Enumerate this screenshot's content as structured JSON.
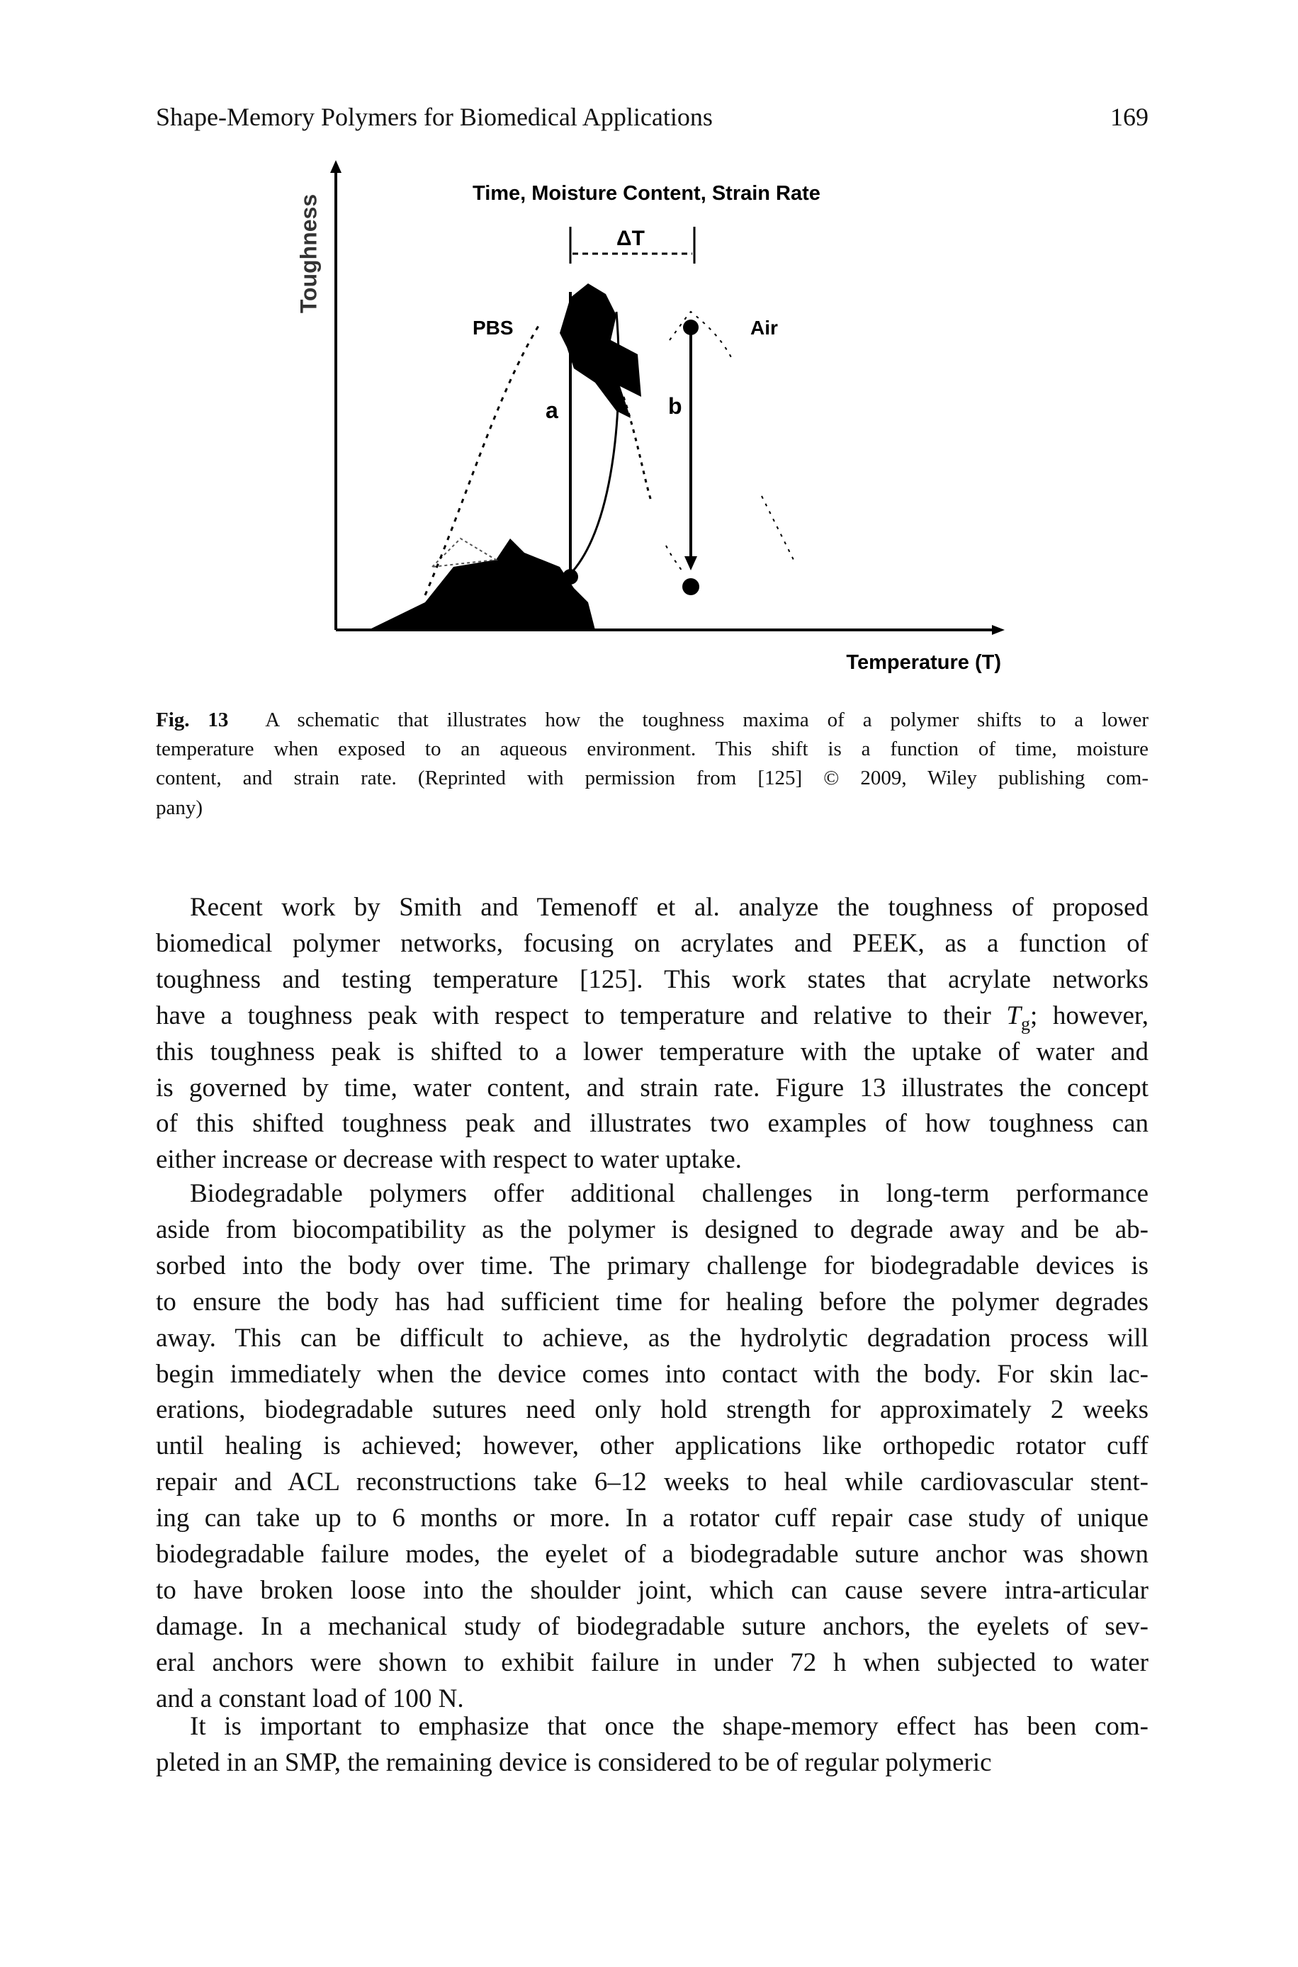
{
  "header": {
    "title": "Shape-Memory Polymers for Biomedical Applications",
    "page_number": "169"
  },
  "figure": {
    "y_axis_label": "Toughness",
    "x_axis_label": "Temperature (T)",
    "top_label": "Time, Moisture Content, Strain Rate",
    "delta_label": "ΔT",
    "left_curve_label": "PBS",
    "right_curve_label": "Air",
    "line_a_label": "a",
    "line_b_label": "b"
  },
  "caption": {
    "label": "Fig. 13",
    "lines": [
      "A schematic that illustrates how the toughness maxima of a polymer shifts to a lower",
      "temperature when exposed to an aqueous environment. This shift is a function of time, moisture",
      "content, and strain rate. (Reprinted with permission from [125] © 2009, Wiley publishing com-",
      "pany)"
    ]
  },
  "paragraphs": [
    [
      "Recent work by Smith and Temenoff et al. analyze the toughness of proposed",
      "biomedical polymer networks, focusing on acrylates and PEEK, as a function of",
      "toughness and testing temperature [125]. This work states that acrylate networks",
      {
        "before": "have a toughness peak with respect to temperature and relative to their ",
        "symbol": "T",
        "subscript": "g",
        "after": "; however,"
      },
      "this toughness peak is shifted to a lower temperature with the uptake of water and",
      "is governed by time, water content, and strain rate. Figure 13 illustrates the concept",
      "of this shifted toughness peak and illustrates two examples of how toughness can",
      "either increase or decrease with respect to water uptake."
    ],
    [
      "Biodegradable polymers offer additional challenges in long-term performance",
      "aside from biocompatibility as the polymer is designed to degrade away and be ab-",
      "sorbed into the body over time. The primary challenge for biodegradable devices is",
      "to ensure the body has had sufficient time for healing before the polymer degrades",
      "away. This can be difficult to achieve, as the hydrolytic degradation process will",
      "begin immediately when the device comes into contact with the body. For skin lac-",
      "erations, biodegradable sutures need only hold strength for approximately 2 weeks",
      "until healing is achieved; however, other applications like orthopedic rotator cuff",
      "repair and ACL reconstructions take 6–12 weeks to heal while cardiovascular stent-",
      "ing can take up to 6 months or more. In a rotator cuff repair case study of unique",
      "biodegradable failure modes, the eyelet of a biodegradable suture anchor was shown",
      "to have broken loose into the shoulder joint, which can cause severe intra-articular",
      "damage. In a mechanical study of biodegradable suture anchors, the eyelets of sev-",
      "eral anchors were shown to exhibit failure in under 72 h when subjected to water",
      "and a constant load of 100 N."
    ],
    [
      "It is important to emphasize that once the shape-memory effect has been com-",
      "pleted in an SMP, the remaining device is considered to be of regular polymeric"
    ]
  ]
}
